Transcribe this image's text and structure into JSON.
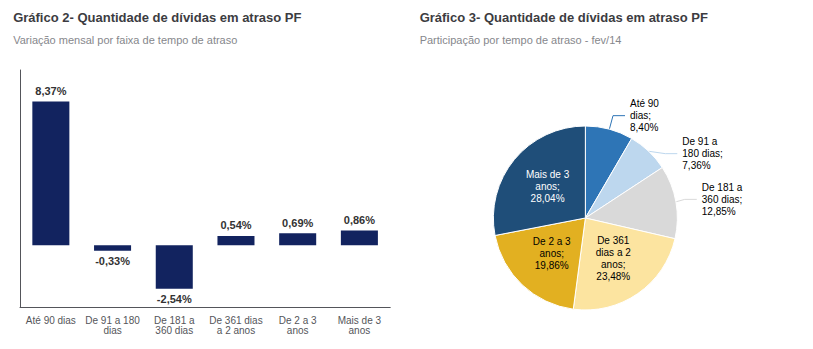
{
  "chart_data": [
    {
      "type": "bar",
      "title": "Gráfico 2- Quantidade de dívidas em atraso PF",
      "subtitle": "Variação mensal por faixa de tempo de atraso",
      "categories": [
        "Até 90 dias",
        "De 91 a 180\ndias",
        "De 181 a\n360 dias",
        "De 361 dias\na 2 anos",
        "De 2 a 3\nanos",
        "Mais de 3\nanos"
      ],
      "values": [
        8.37,
        -0.33,
        -2.54,
        0.54,
        0.69,
        0.86
      ],
      "value_labels": [
        "8,37%",
        "-0,33%",
        "-2,54%",
        "0,54%",
        "0,69%",
        "0,86%"
      ],
      "data_labels": true,
      "color": "#12235f",
      "ylim": [
        -3.6,
        10.2
      ],
      "tick_labels": "x",
      "grid": false
    },
    {
      "type": "pie",
      "title": "Gráfico 3- Quantidade de dívidas em atraso PF",
      "subtitle": "Participação por tempo de atraso - fev/14",
      "categories": [
        "Até 90\ndias;",
        "De 91 a\n180 dias;",
        "De 181 a\n360 dias;",
        "De 361\ndias a 2\nanos;",
        "De 2 a 3\nanos;",
        "Mais de 3\nanos;"
      ],
      "values": [
        8.4,
        7.36,
        12.85,
        23.48,
        19.86,
        28.04
      ],
      "value_labels": [
        "8,40%",
        "7,36%",
        "12,85%",
        "23,48%",
        "19,86%",
        "28,04%"
      ],
      "data_labels": true,
      "colors": [
        "#2e75b6",
        "#bdd7ee",
        "#d9d9d9",
        "#fce4a0",
        "#e2b021",
        "#1f4e79"
      ]
    }
  ]
}
